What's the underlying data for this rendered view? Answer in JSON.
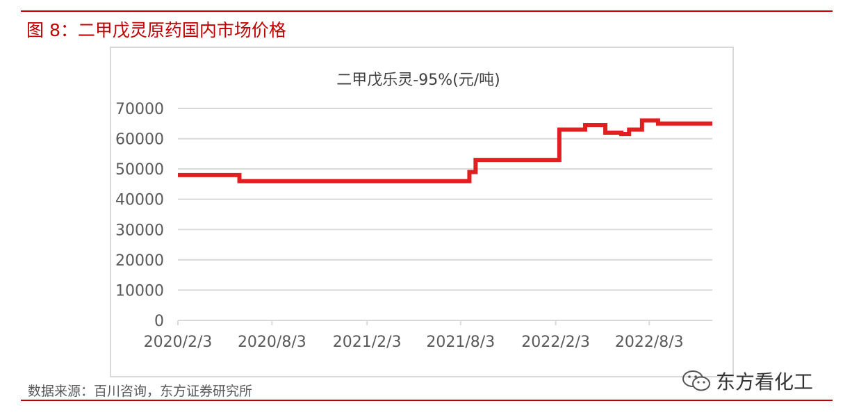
{
  "header": {
    "figure_title": "图 8：二甲戊灵原药国内市场价格"
  },
  "footer": {
    "source": "数据来源：百川咨询，东方证券研究所"
  },
  "watermark": {
    "text": "东方看化工",
    "icon": "wechat-icon"
  },
  "colors": {
    "accent": "#c00000",
    "line": "#e02020",
    "grid": "#d9d9d9",
    "text": "#595959"
  },
  "chart_data": {
    "type": "line",
    "title": "二甲戊乐灵-95%(元/吨)",
    "xlabel": "",
    "ylabel": "",
    "ylim": [
      0,
      70000
    ],
    "yticks": [
      0,
      10000,
      20000,
      30000,
      40000,
      50000,
      60000,
      70000
    ],
    "xticks": [
      "2020/2/3",
      "2020/8/3",
      "2021/2/3",
      "2021/8/3",
      "2022/2/3",
      "2022/8/3"
    ],
    "xrange": [
      "2020/2/3",
      "2022/12/3"
    ],
    "grid": true,
    "legend": "none",
    "series": [
      {
        "name": "",
        "color": "#e02020",
        "step": true,
        "points": [
          [
            "2020/2/3",
            48000
          ],
          [
            "2020/6/1",
            46000
          ],
          [
            "2021/8/20",
            49000
          ],
          [
            "2021/9/1",
            53000
          ],
          [
            "2022/2/10",
            63000
          ],
          [
            "2022/4/1",
            64500
          ],
          [
            "2022/5/10",
            62000
          ],
          [
            "2022/6/10",
            61500
          ],
          [
            "2022/6/25",
            63000
          ],
          [
            "2022/7/20",
            66000
          ],
          [
            "2022/8/20",
            65000
          ],
          [
            "2022/12/3",
            65000
          ]
        ]
      }
    ]
  }
}
